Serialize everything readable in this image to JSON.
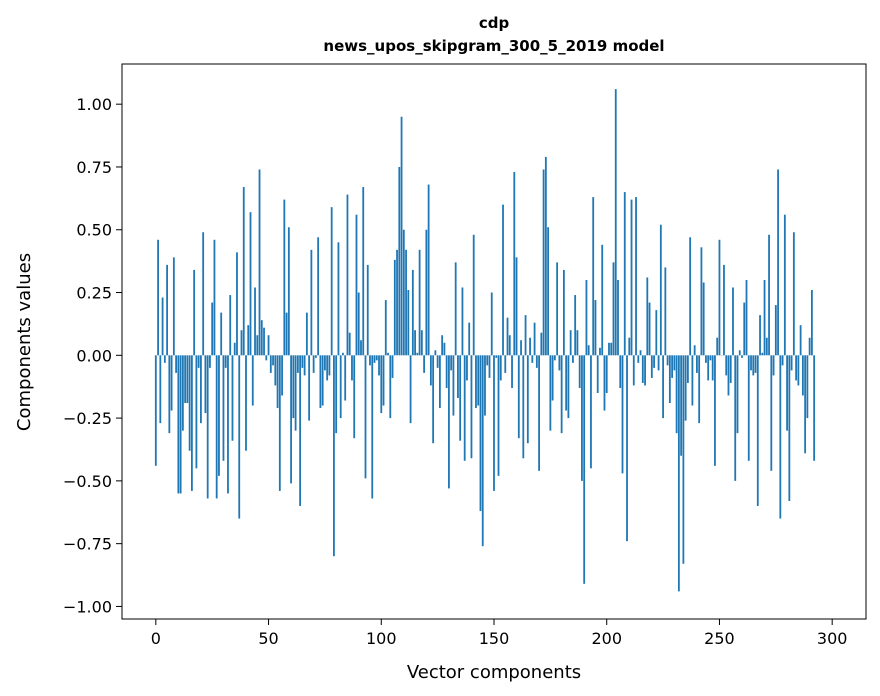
{
  "chart_data": {
    "type": "bar",
    "title": "cdp",
    "subtitle": "news_upos_skipgram_300_5_2019 model",
    "xlabel": "Vector components",
    "ylabel": "Components values",
    "xlim": [
      -15,
      315
    ],
    "ylim": [
      -1.05,
      1.16
    ],
    "xticks": [
      "0",
      "50",
      "100",
      "150",
      "200",
      "250",
      "300"
    ],
    "yticks": [
      "−1.00",
      "−0.75",
      "−0.50",
      "−0.25",
      "0.00",
      "0.25",
      "0.50",
      "0.75",
      "1.00"
    ],
    "grid": false,
    "color": "#1f77b4",
    "values": [
      -0.44,
      0.46,
      -0.27,
      0.23,
      -0.03,
      0.36,
      -0.31,
      -0.22,
      0.39,
      -0.07,
      -0.55,
      -0.55,
      -0.3,
      -0.19,
      -0.19,
      -0.38,
      -0.54,
      0.34,
      -0.45,
      -0.05,
      -0.27,
      0.49,
      -0.23,
      -0.57,
      -0.05,
      0.21,
      0.46,
      -0.57,
      -0.48,
      0.17,
      -0.42,
      -0.05,
      -0.55,
      0.24,
      -0.34,
      0.05,
      0.41,
      -0.65,
      0.1,
      0.67,
      -0.38,
      0.12,
      0.57,
      -0.2,
      0.27,
      0.08,
      0.74,
      0.14,
      0.11,
      -0.02,
      0.08,
      -0.07,
      -0.04,
      -0.12,
      -0.21,
      -0.54,
      -0.16,
      0.62,
      0.17,
      0.51,
      -0.51,
      -0.25,
      -0.3,
      -0.07,
      -0.6,
      -0.05,
      -0.08,
      0.17,
      -0.26,
      0.42,
      -0.07,
      -0.01,
      0.47,
      -0.21,
      -0.2,
      -0.06,
      -0.1,
      -0.08,
      0.59,
      -0.8,
      -0.31,
      0.45,
      -0.25,
      0.01,
      -0.18,
      0.64,
      0.09,
      -0.1,
      -0.33,
      0.56,
      0.25,
      0.06,
      0.67,
      -0.49,
      0.36,
      -0.04,
      -0.57,
      -0.03,
      -0.02,
      -0.08,
      -0.23,
      -0.2,
      0.22,
      0.01,
      -0.25,
      -0.09,
      0.38,
      0.42,
      0.75,
      0.95,
      0.5,
      0.42,
      0.26,
      -0.27,
      0.34,
      0.1,
      0.01,
      0.42,
      0.1,
      -0.07,
      0.5,
      0.68,
      -0.12,
      -0.35,
      0.02,
      -0.05,
      -0.21,
      0.08,
      0.05,
      -0.13,
      -0.53,
      -0.06,
      -0.24,
      0.37,
      -0.17,
      -0.34,
      0.27,
      -0.42,
      -0.1,
      0.13,
      -0.41,
      0.48,
      -0.21,
      -0.2,
      -0.62,
      -0.76,
      -0.24,
      -0.04,
      -0.09,
      0.25,
      -0.54,
      -0.01,
      -0.48,
      -0.1,
      0.6,
      -0.07,
      0.15,
      0.08,
      -0.13,
      0.73,
      0.39,
      -0.33,
      0.06,
      -0.41,
      0.16,
      -0.35,
      0.07,
      -0.03,
      0.13,
      -0.05,
      -0.46,
      0.09,
      0.74,
      0.79,
      0.51,
      -0.3,
      -0.18,
      -0.02,
      0.37,
      -0.06,
      -0.31,
      0.34,
      -0.22,
      -0.25,
      0.1,
      -0.03,
      0.24,
      0.1,
      -0.13,
      -0.5,
      -0.91,
      0.3,
      0.04,
      -0.45,
      0.63,
      0.22,
      -0.15,
      0.03,
      0.44,
      -0.22,
      -0.15,
      0.05,
      0.05,
      0.37,
      1.06,
      0.3,
      -0.13,
      -0.47,
      0.65,
      -0.74,
      0.07,
      0.62,
      -0.12,
      0.63,
      -0.03,
      0.02,
      -0.11,
      -0.12,
      0.31,
      0.21,
      -0.09,
      -0.05,
      0.18,
      -0.06,
      0.52,
      -0.25,
      0.35,
      -0.04,
      -0.19,
      -0.09,
      -0.06,
      -0.31,
      -0.94,
      -0.4,
      -0.83,
      -0.26,
      -0.11,
      0.47,
      -0.2,
      0.04,
      -0.07,
      -0.27,
      0.43,
      0.29,
      -0.03,
      -0.1,
      -0.02,
      -0.1,
      -0.44,
      0.07,
      0.46,
      0.0,
      0.36,
      -0.08,
      -0.16,
      -0.11,
      0.27,
      -0.5,
      -0.31,
      0.02,
      -0.01,
      0.21,
      0.3,
      -0.42,
      -0.06,
      -0.08,
      -0.07,
      -0.6,
      0.16,
      0.01,
      0.3,
      0.07,
      0.48,
      -0.46,
      -0.08,
      0.2,
      0.74,
      -0.65,
      -0.04,
      0.56,
      -0.3,
      -0.58,
      -0.06,
      0.49,
      -0.1,
      -0.12,
      0.12,
      -0.16,
      -0.39,
      -0.25,
      0.07,
      0.26,
      -0.42
    ]
  }
}
